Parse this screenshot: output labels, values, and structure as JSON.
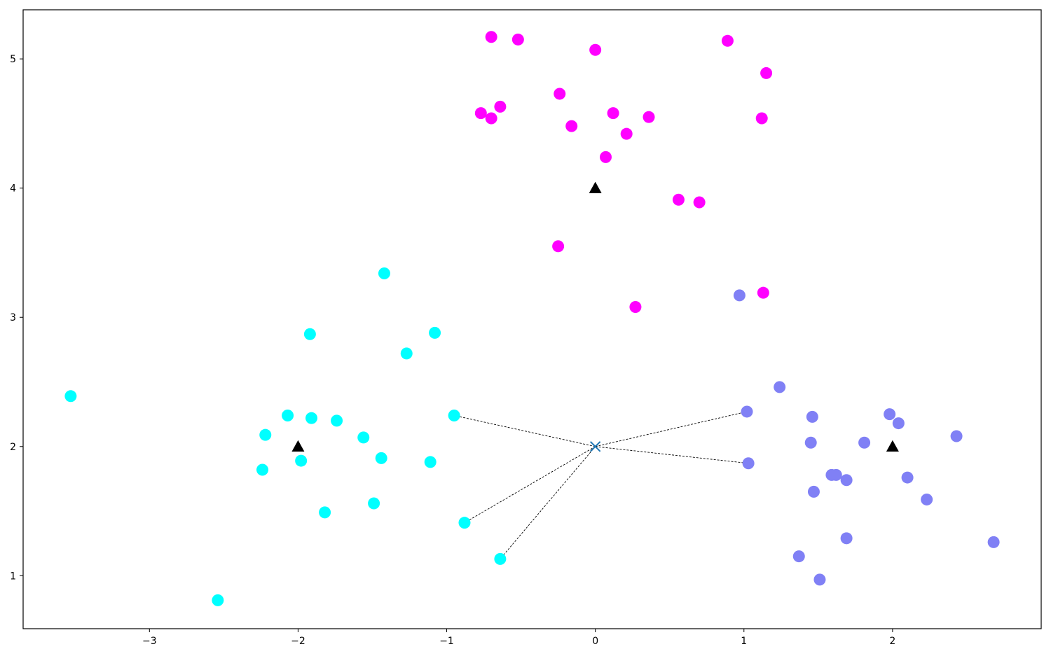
{
  "chart_data": {
    "type": "scatter",
    "title": "",
    "xlabel": "",
    "ylabel": "",
    "xlim": [
      -3.85,
      3.0
    ],
    "ylim": [
      0.59,
      5.38
    ],
    "grid": false,
    "legend": "none",
    "x_ticks": [
      {
        "value": -3,
        "label": "−3"
      },
      {
        "value": -2,
        "label": "−2"
      },
      {
        "value": -1,
        "label": "−1"
      },
      {
        "value": 0,
        "label": "0"
      },
      {
        "value": 1,
        "label": "1"
      },
      {
        "value": 2,
        "label": "2"
      }
    ],
    "y_ticks": [
      {
        "value": 1,
        "label": "1"
      },
      {
        "value": 2,
        "label": "2"
      },
      {
        "value": 3,
        "label": "3"
      },
      {
        "value": 4,
        "label": "4"
      },
      {
        "value": 5,
        "label": "5"
      }
    ],
    "series": [
      {
        "color": "#00ffff",
        "marker": "circle",
        "points": [
          [
            -3.53,
            2.39
          ],
          [
            -2.54,
            0.81
          ],
          [
            -2.24,
            1.82
          ],
          [
            -2.22,
            2.09
          ],
          [
            -2.07,
            2.24
          ],
          [
            -1.98,
            1.89
          ],
          [
            -1.92,
            2.87
          ],
          [
            -1.91,
            2.22
          ],
          [
            -1.82,
            1.49
          ],
          [
            -1.74,
            2.2
          ],
          [
            -1.56,
            2.07
          ],
          [
            -1.49,
            1.56
          ],
          [
            -1.44,
            1.91
          ],
          [
            -1.42,
            3.34
          ],
          [
            -1.27,
            2.72
          ],
          [
            -1.11,
            1.88
          ],
          [
            -1.08,
            2.88
          ],
          [
            -0.95,
            2.24
          ],
          [
            -0.88,
            1.41
          ],
          [
            -0.64,
            1.13
          ]
        ]
      },
      {
        "color": "#ff00ff",
        "marker": "circle",
        "points": [
          [
            -0.7,
            5.17
          ],
          [
            -0.52,
            5.15
          ],
          [
            0.0,
            5.07
          ],
          [
            0.89,
            5.14
          ],
          [
            1.15,
            4.89
          ],
          [
            -0.24,
            4.73
          ],
          [
            -0.64,
            4.63
          ],
          [
            -0.77,
            4.58
          ],
          [
            -0.7,
            4.54
          ],
          [
            0.12,
            4.58
          ],
          [
            0.36,
            4.55
          ],
          [
            -0.16,
            4.48
          ],
          [
            0.21,
            4.42
          ],
          [
            1.12,
            4.54
          ],
          [
            0.07,
            4.24
          ],
          [
            0.56,
            3.91
          ],
          [
            0.7,
            3.89
          ],
          [
            -0.25,
            3.55
          ],
          [
            1.13,
            3.19
          ],
          [
            0.27,
            3.08
          ]
        ]
      },
      {
        "color": "#8080f5",
        "marker": "circle",
        "points": [
          [
            0.97,
            3.17
          ],
          [
            1.24,
            2.46
          ],
          [
            1.02,
            2.27
          ],
          [
            1.46,
            2.23
          ],
          [
            1.98,
            2.25
          ],
          [
            2.04,
            2.18
          ],
          [
            2.43,
            2.08
          ],
          [
            1.45,
            2.03
          ],
          [
            1.81,
            2.03
          ],
          [
            1.03,
            1.87
          ],
          [
            1.59,
            1.78
          ],
          [
            1.62,
            1.78
          ],
          [
            1.69,
            1.74
          ],
          [
            2.1,
            1.76
          ],
          [
            1.47,
            1.65
          ],
          [
            2.23,
            1.59
          ],
          [
            1.69,
            1.29
          ],
          [
            2.68,
            1.26
          ],
          [
            1.37,
            1.15
          ],
          [
            1.51,
            0.97
          ]
        ]
      }
    ],
    "centers": {
      "color": "#000000",
      "marker": "triangle",
      "points": [
        [
          0,
          4
        ],
        [
          -2,
          2
        ],
        [
          2,
          2
        ]
      ]
    },
    "query_point": {
      "color": "#1f77b4",
      "marker": "x",
      "point": [
        0,
        2
      ]
    },
    "neighbor_lines": {
      "color": "#000000",
      "style": "dashed",
      "targets": [
        [
          -0.95,
          2.24
        ],
        [
          -0.88,
          1.41
        ],
        [
          -0.64,
          1.13
        ],
        [
          1.02,
          2.27
        ],
        [
          1.03,
          1.87
        ]
      ]
    }
  }
}
